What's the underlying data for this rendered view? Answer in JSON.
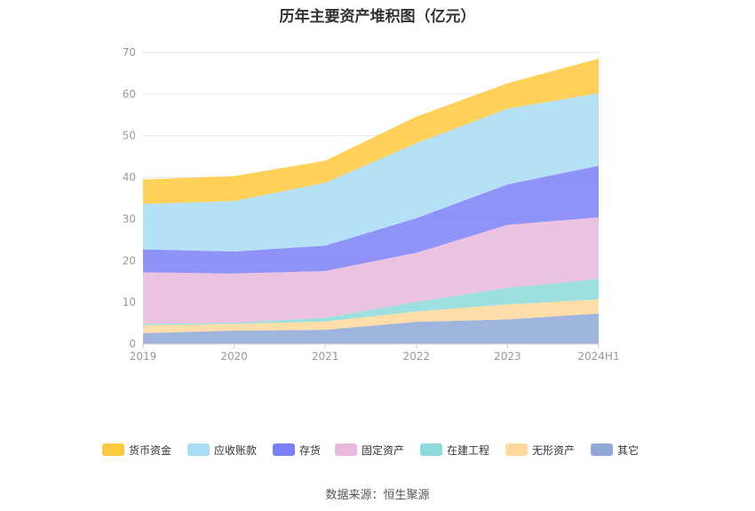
{
  "chart_data": {
    "type": "area",
    "stacked": true,
    "title": "历年主要资产堆积图（亿元）",
    "categories": [
      "2019",
      "2020",
      "2021",
      "2022",
      "2023",
      "2024H1"
    ],
    "ylim": [
      0,
      70
    ],
    "yticks": [
      0,
      10,
      20,
      30,
      40,
      50,
      60,
      70
    ],
    "grid": true,
    "legend_position": "bottom",
    "series": [
      {
        "name": "其它",
        "color": "#8fa8d8",
        "values": [
          2.6,
          3.2,
          3.4,
          5.3,
          5.9,
          7.3
        ]
      },
      {
        "name": "无形资产",
        "color": "#ffd89a",
        "values": [
          1.9,
          1.6,
          2.0,
          2.5,
          3.6,
          3.4
        ]
      },
      {
        "name": "在建工程",
        "color": "#8ddada",
        "values": [
          0.3,
          0.3,
          0.9,
          2.3,
          4.0,
          4.9
        ]
      },
      {
        "name": "固定资产",
        "color": "#e8b9dc",
        "values": [
          12.4,
          11.8,
          11.2,
          11.8,
          15.1,
          14.8
        ]
      },
      {
        "name": "存货",
        "color": "#7b7ff5",
        "values": [
          5.5,
          5.3,
          6.1,
          8.3,
          9.7,
          12.4
        ]
      },
      {
        "name": "应收账款",
        "color": "#a8dcf5",
        "values": [
          10.9,
          12.1,
          15.1,
          18.0,
          18.2,
          17.4
        ]
      },
      {
        "name": "货币资金",
        "color": "#ffc93c",
        "values": [
          5.9,
          6.0,
          5.3,
          6.4,
          6.1,
          8.3
        ]
      }
    ],
    "legend_order": [
      "货币资金",
      "应收账款",
      "存货",
      "固定资产",
      "在建工程",
      "无形资产",
      "其它"
    ]
  },
  "source_label": "数据来源：恒生聚源"
}
